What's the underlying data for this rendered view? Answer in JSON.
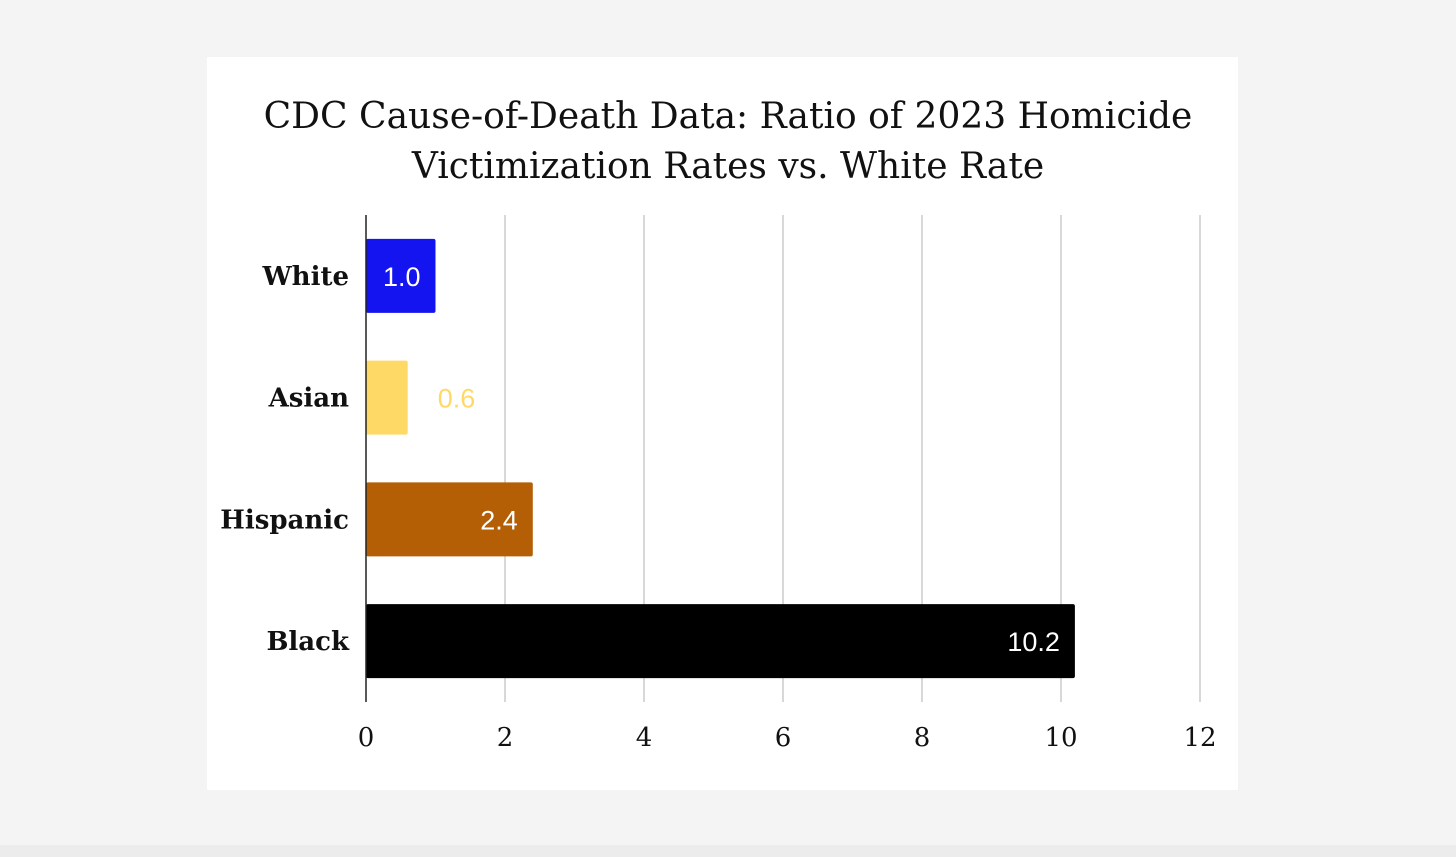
{
  "chart_data": {
    "type": "bar",
    "orientation": "horizontal",
    "title": "CDC Cause-of-Death Data: Ratio of 2023 Homicide Victimization Rates vs. White Rate",
    "title_lines": [
      "CDC Cause-of-Death Data: Ratio of 2023 Homicide",
      "Victimization Rates vs. White Rate"
    ],
    "categories": [
      "White",
      "Asian",
      "Hispanic",
      "Black"
    ],
    "values": [
      1.0,
      0.6,
      2.4,
      10.2
    ],
    "data_labels": [
      "1.0",
      "0.6",
      "2.4",
      "10.2"
    ],
    "colors": [
      "#1414f0",
      "#ffd966",
      "#b45f06",
      "#000000"
    ],
    "label_colors": [
      "#ffffff",
      "#ffd966",
      "#ffffff",
      "#ffffff"
    ],
    "xlim": [
      0,
      12
    ],
    "xticks": [
      0,
      2,
      4,
      6,
      8,
      10,
      12
    ],
    "xtick_labels": [
      "0",
      "2",
      "4",
      "6",
      "8",
      "10",
      "12"
    ],
    "xlabel": "",
    "ylabel": "",
    "grid": true,
    "legend": "none"
  }
}
